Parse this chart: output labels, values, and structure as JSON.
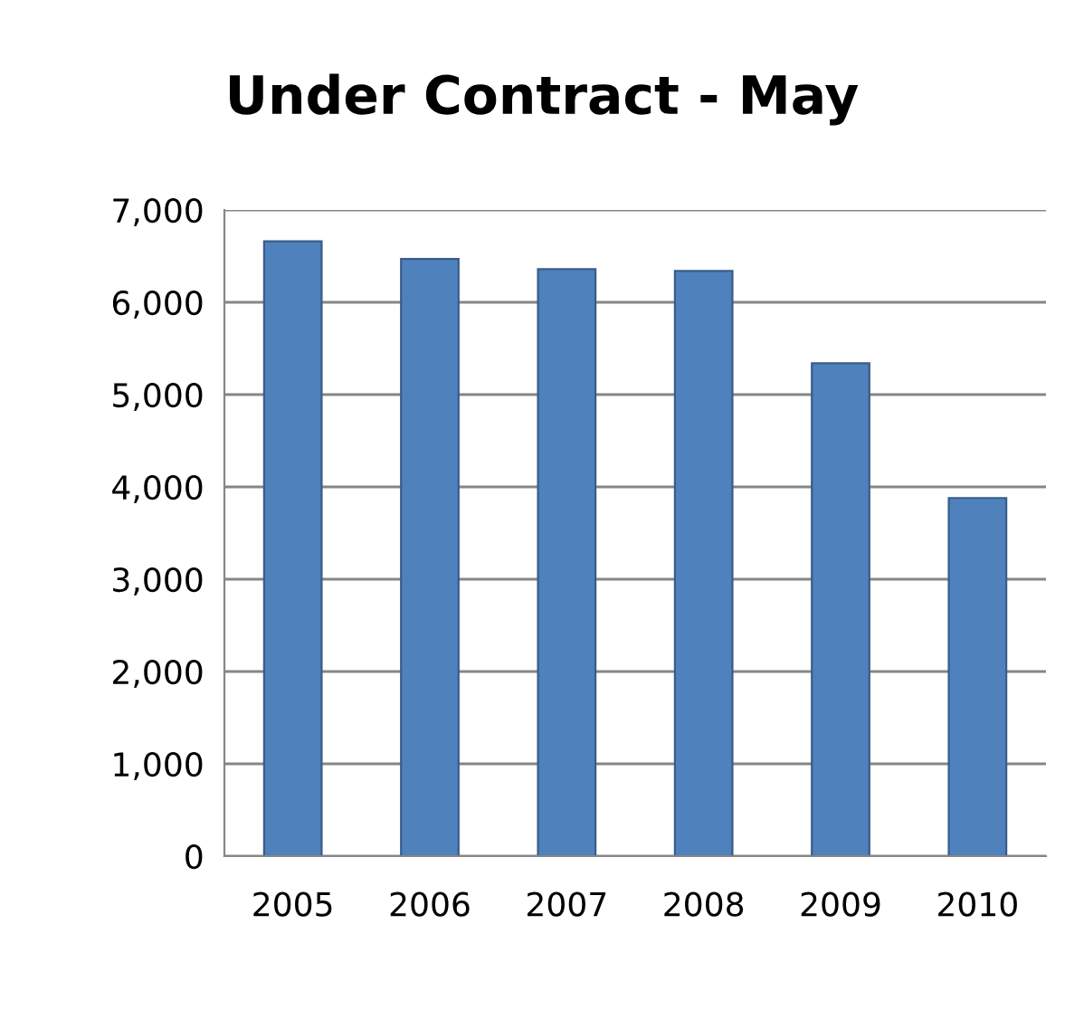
{
  "chart_data": {
    "type": "bar",
    "title": "Under Contract - May",
    "categories": [
      "2005",
      "2006",
      "2007",
      "2008",
      "2009",
      "2010"
    ],
    "values": [
      6660,
      6470,
      6360,
      6340,
      5340,
      3880
    ],
    "color": "#4f81bd",
    "ylim": [
      0,
      7000
    ],
    "yticks": [
      {
        "value": 0,
        "label": "0"
      },
      {
        "value": 1000,
        "label": "1,000"
      },
      {
        "value": 2000,
        "label": "2,000"
      },
      {
        "value": 3000,
        "label": "3,000"
      },
      {
        "value": 4000,
        "label": "4,000"
      },
      {
        "value": 5000,
        "label": "5,000"
      },
      {
        "value": 6000,
        "label": "6,000"
      },
      {
        "value": 7000,
        "label": "7,000"
      }
    ],
    "grid": "y"
  }
}
